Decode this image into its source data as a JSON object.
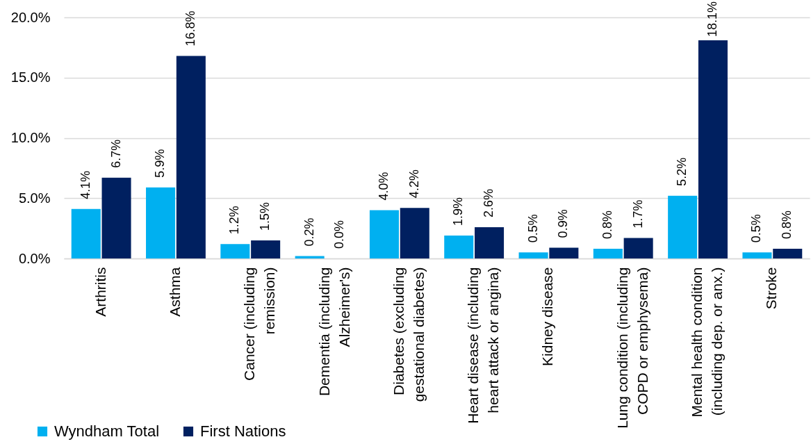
{
  "chart_data": {
    "type": "bar",
    "categories": [
      "Arthritis",
      "Asthma",
      "Cancer (including remission)",
      "Dementia (including Alzheimer's)",
      "Diabetes (excluding gestational diabetes)",
      "Heart disease (including heart attack or angina)",
      "Kidney disease",
      "Lung condition (including COPD or emphysema)",
      "Mental health condition (including dep. or anx.)",
      "Stroke"
    ],
    "series": [
      {
        "name": "Wyndham Total",
        "color": "#00b0f0",
        "values": [
          4.1,
          5.9,
          1.2,
          0.2,
          4.0,
          1.9,
          0.5,
          0.8,
          5.2,
          0.5
        ],
        "value_labels": [
          "4.1%",
          "5.9%",
          "1.2%",
          "0.2%",
          "4.0%",
          "1.9%",
          "0.5%",
          "0.8%",
          "5.2%",
          "0.5%"
        ]
      },
      {
        "name": "First Nations",
        "color": "#002060",
        "values": [
          6.7,
          16.8,
          1.5,
          0.0,
          4.2,
          2.6,
          0.9,
          1.7,
          18.1,
          0.8
        ],
        "value_labels": [
          "6.7%",
          "16.8%",
          "1.5%",
          "0.0%",
          "4.2%",
          "2.6%",
          "0.9%",
          "1.7%",
          "18.1%",
          "0.8%"
        ]
      }
    ],
    "ylim": [
      0,
      20
    ],
    "yticks": [
      {
        "value": 0,
        "label": "0.0%"
      },
      {
        "value": 5,
        "label": "5.0%"
      },
      {
        "value": 10,
        "label": "10.0%"
      },
      {
        "value": 15,
        "label": "15.0%"
      },
      {
        "value": 20,
        "label": "20.0%"
      }
    ],
    "grid": "y",
    "legend": "bottom left"
  }
}
